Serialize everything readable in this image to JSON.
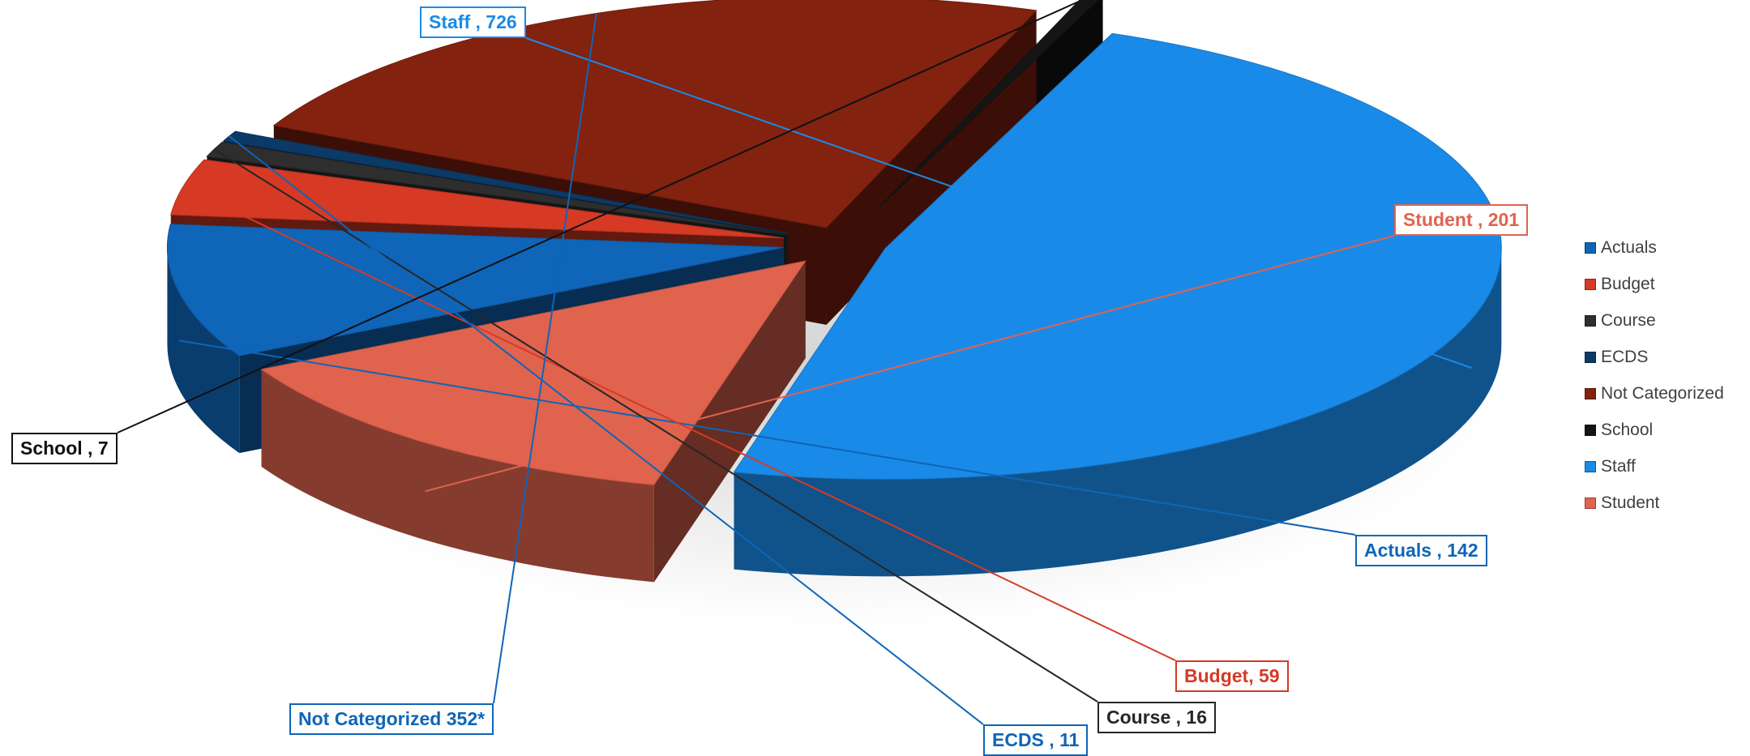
{
  "chart_data": {
    "type": "pie",
    "style": "3d-exploded",
    "slices": [
      {
        "label": "Staff",
        "value": 726,
        "display": "Staff , 726",
        "color": "#1A8AE8",
        "text_color": "#1A8AE8"
      },
      {
        "label": "Student",
        "value": 201,
        "display": "Student , 201",
        "color": "#E0634E",
        "text_color": "#E0634E"
      },
      {
        "label": "Actuals",
        "value": 142,
        "display": "Actuals , 142",
        "color": "#0F65B8",
        "text_color": "#0F65B8"
      },
      {
        "label": "Budget",
        "value": 59,
        "display": "Budget, 59",
        "color": "#D63A24",
        "text_color": "#D63A24"
      },
      {
        "label": "Course",
        "value": 16,
        "display": "Course , 16",
        "color": "#2E2E2E",
        "text_color": "#262626"
      },
      {
        "label": "ECDS",
        "value": 11,
        "display": "ECDS , 11",
        "color": "#0C3A66",
        "text_color": "#0F65B8"
      },
      {
        "label": "Not Categorized",
        "value": 352,
        "display": "Not Categorized 352*",
        "color": "#82220F",
        "text_color": "#0F65B8"
      },
      {
        "label": "School",
        "value": 7,
        "display": "School , 7",
        "color": "#151515",
        "text_color": "#111111"
      }
    ],
    "legend": {
      "position": "right",
      "items": [
        {
          "label": "Actuals",
          "color": "#0F65B8"
        },
        {
          "label": "Budget",
          "color": "#D63A24"
        },
        {
          "label": "Course",
          "color": "#2E2E2E"
        },
        {
          "label": "ECDS",
          "color": "#0C3A66"
        },
        {
          "label": "Not Categorized",
          "color": "#82220F"
        },
        {
          "label": "School",
          "color": "#151515"
        },
        {
          "label": "Staff",
          "color": "#1A8AE8"
        },
        {
          "label": "Student",
          "color": "#E0634E"
        }
      ]
    }
  }
}
